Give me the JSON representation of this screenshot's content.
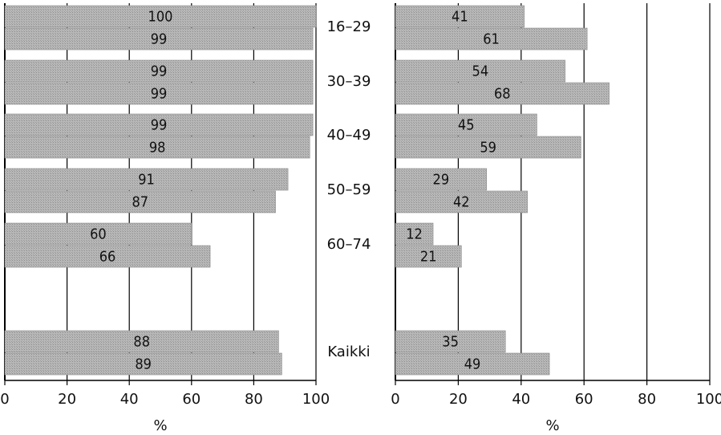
{
  "chart_data": [
    {
      "type": "bar",
      "orientation": "horizontal",
      "categories": [
        "16–29",
        "30–39",
        "40–49",
        "50–59",
        "60–74",
        "Kaikki"
      ],
      "series": [
        {
          "values": [
            100,
            99,
            99,
            91,
            60,
            88
          ]
        },
        {
          "values": [
            99,
            99,
            98,
            87,
            66,
            89
          ]
        }
      ],
      "xlabel": "%",
      "xlim": [
        0,
        100
      ],
      "xticks": [
        0,
        20,
        40,
        60,
        80,
        100
      ],
      "grid": true
    },
    {
      "type": "bar",
      "orientation": "horizontal",
      "categories": [
        "16–29",
        "30–39",
        "40–49",
        "50–59",
        "60–74",
        "Kaikki"
      ],
      "series": [
        {
          "values": [
            41,
            54,
            45,
            29,
            12,
            35
          ]
        },
        {
          "values": [
            61,
            68,
            59,
            42,
            21,
            49
          ]
        }
      ],
      "xlabel": "%",
      "xlim": [
        0,
        100
      ],
      "xticks": [
        0,
        20,
        40,
        60,
        80,
        100
      ],
      "grid": true
    }
  ],
  "colors": {
    "bar_fill": "#b4b4b4",
    "bar_stripe": "#9a9a9a",
    "grid": "#000000",
    "text": "#111111"
  }
}
